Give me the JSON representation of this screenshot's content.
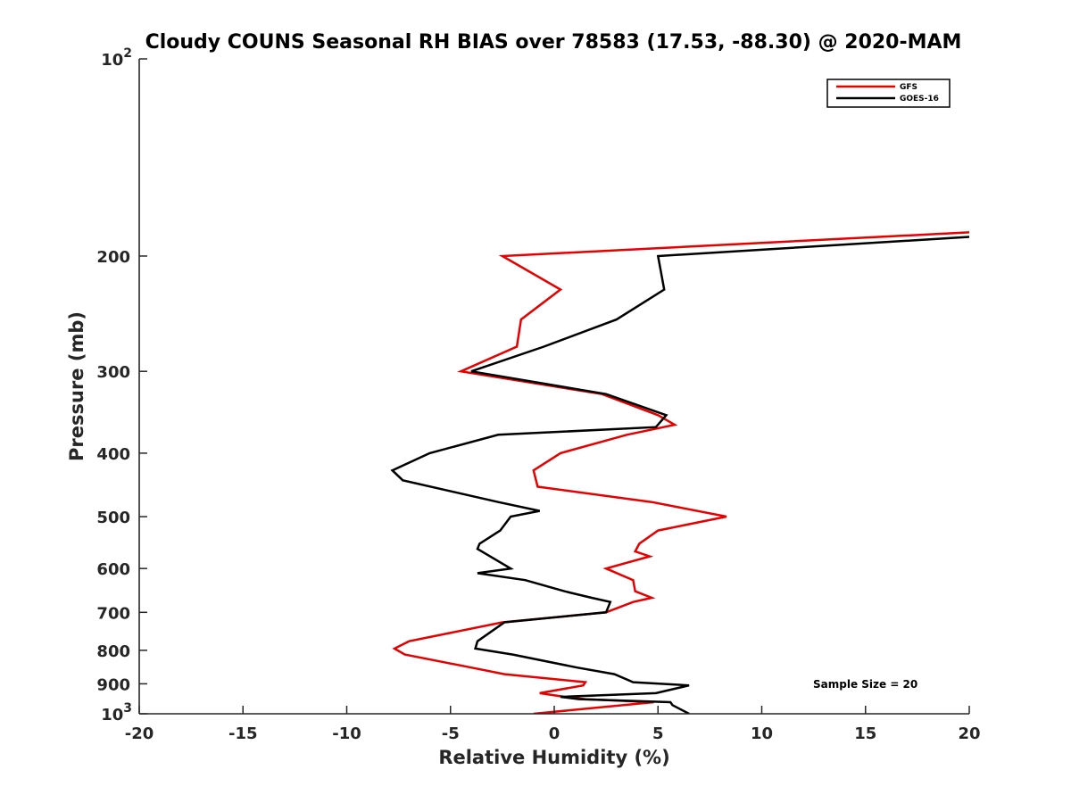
{
  "chart_data": {
    "type": "line",
    "title": "Cloudy COUNS Seasonal RH BIAS over 78583 (17.53, -88.30) @ 2020-MAM",
    "xlabel": "Relative Humidity (%)",
    "ylabel": "Pressure (mb)",
    "xlim": [
      -20,
      20
    ],
    "ylim": [
      100,
      1000
    ],
    "yscale": "log",
    "y_reversed": true,
    "x_ticks": [
      -20,
      -15,
      -10,
      -5,
      0,
      5,
      10,
      15,
      20
    ],
    "x_tick_labels": [
      "-20",
      "-15",
      "-10",
      "-5",
      "0",
      "5",
      "10",
      "15",
      "20"
    ],
    "y_ticks": [
      100,
      200,
      300,
      400,
      500,
      600,
      700,
      800,
      900,
      1000
    ],
    "y_tick_labels": [
      {
        "base": "10",
        "exp": "2"
      },
      {
        "base": "200",
        "exp": ""
      },
      {
        "base": "300",
        "exp": ""
      },
      {
        "base": "400",
        "exp": ""
      },
      {
        "base": "500",
        "exp": ""
      },
      {
        "base": "600",
        "exp": ""
      },
      {
        "base": "700",
        "exp": ""
      },
      {
        "base": "800",
        "exp": ""
      },
      {
        "base": "900",
        "exp": ""
      },
      {
        "base": "10",
        "exp": "3"
      }
    ],
    "legend_position": "top-right",
    "annotation": "Sample Size = 20",
    "series": [
      {
        "name": "GFS",
        "color": "#e60000",
        "points": [
          [
            20,
            184
          ],
          [
            -2.5,
            200
          ],
          [
            0.3,
            225
          ],
          [
            -1.6,
            250
          ],
          [
            -1.8,
            275
          ],
          [
            -4.5,
            300
          ],
          [
            2.3,
            325
          ],
          [
            5,
            350
          ],
          [
            5.8,
            362
          ],
          [
            3.5,
            375
          ],
          [
            0.3,
            400
          ],
          [
            -1,
            425
          ],
          [
            -0.8,
            450
          ],
          [
            4.7,
            475
          ],
          [
            8.3,
            500
          ],
          [
            5,
            525
          ],
          [
            4.1,
            550
          ],
          [
            3.9,
            565
          ],
          [
            4.6,
            575
          ],
          [
            2.5,
            600
          ],
          [
            3.8,
            625
          ],
          [
            3.9,
            650
          ],
          [
            4.7,
            665
          ],
          [
            3.8,
            675
          ],
          [
            2.5,
            700
          ],
          [
            -2.5,
            725
          ],
          [
            -7,
            775
          ],
          [
            -7.7,
            795
          ],
          [
            -7.2,
            812
          ],
          [
            -4,
            850
          ],
          [
            -2.4,
            870
          ],
          [
            1.5,
            895
          ],
          [
            1.4,
            905
          ],
          [
            -0.7,
            930
          ],
          [
            0.5,
            942
          ],
          [
            1.5,
            950
          ],
          [
            4.8,
            960
          ],
          [
            -1,
            1000
          ]
        ]
      },
      {
        "name": "GOES-16",
        "color": "#000000",
        "points": [
          [
            20,
            187
          ],
          [
            5,
            200
          ],
          [
            5.3,
            225
          ],
          [
            3,
            250
          ],
          [
            -0.5,
            275
          ],
          [
            -4,
            300
          ],
          [
            2.5,
            325
          ],
          [
            5.4,
            350
          ],
          [
            4.9,
            365
          ],
          [
            -2.7,
            375
          ],
          [
            -6,
            400
          ],
          [
            -7.8,
            425
          ],
          [
            -7.3,
            440
          ],
          [
            -2.7,
            475
          ],
          [
            -0.7,
            490
          ],
          [
            -2.1,
            500
          ],
          [
            -2.6,
            525
          ],
          [
            -3.6,
            550
          ],
          [
            -3.7,
            560
          ],
          [
            -2.1,
            600
          ],
          [
            -3.7,
            610
          ],
          [
            -1.4,
            625
          ],
          [
            0.5,
            650
          ],
          [
            1.8,
            665
          ],
          [
            2.7,
            675
          ],
          [
            2.5,
            700
          ],
          [
            -2.4,
            725
          ],
          [
            -3.7,
            775
          ],
          [
            -3.8,
            795
          ],
          [
            -2,
            812
          ],
          [
            1.1,
            850
          ],
          [
            2.9,
            870
          ],
          [
            3.8,
            895
          ],
          [
            6.5,
            905
          ],
          [
            4.9,
            930
          ],
          [
            0.3,
            942
          ],
          [
            1.2,
            950
          ],
          [
            5.6,
            960
          ],
          [
            5.7,
            970
          ],
          [
            6.5,
            1000
          ]
        ]
      }
    ]
  }
}
